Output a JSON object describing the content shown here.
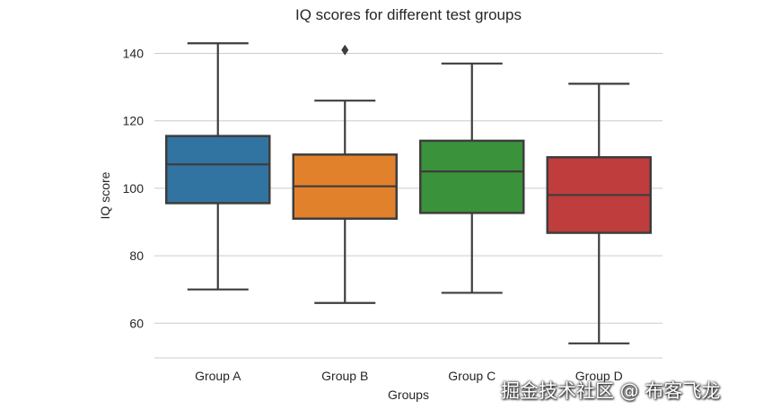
{
  "chart_data": {
    "type": "box",
    "title": "IQ scores for different test groups",
    "xlabel": "Groups",
    "ylabel": "IQ score",
    "ylim": [
      49.7,
      146
    ],
    "yticks": [
      60,
      80,
      100,
      120,
      140
    ],
    "grid": "horizontal",
    "categories": [
      "Group A",
      "Group B",
      "Group C",
      "Group D"
    ],
    "series": [
      {
        "name": "Group A",
        "color": "#3274a1",
        "whisker_low": 70,
        "q1": 95.6,
        "median": 107.1,
        "q3": 115.5,
        "whisker_high": 143,
        "outliers": []
      },
      {
        "name": "Group B",
        "color": "#e1812c",
        "whisker_low": 66,
        "q1": 91,
        "median": 100.6,
        "q3": 110,
        "whisker_high": 126,
        "outliers": [
          141
        ]
      },
      {
        "name": "Group C",
        "color": "#3a923a",
        "whisker_low": 69,
        "q1": 92.7,
        "median": 105,
        "q3": 114.1,
        "whisker_high": 137,
        "outliers": []
      },
      {
        "name": "Group D",
        "color": "#c03d3e",
        "whisker_low": 54,
        "q1": 86.8,
        "median": 98,
        "q3": 109.2,
        "whisker_high": 131,
        "outliers": []
      }
    ]
  },
  "watermark": "掘金技术社区 @ 布客飞龙"
}
